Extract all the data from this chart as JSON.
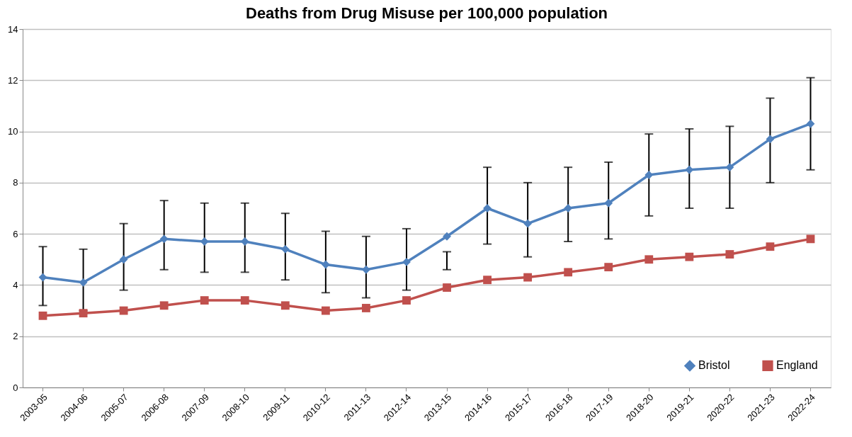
{
  "chart_data": {
    "type": "line",
    "title": "Deaths from Drug Misuse per 100,000 population",
    "categories": [
      "2003-05",
      "2004-06",
      "2005-07",
      "2006-08",
      "2007-09",
      "2008-10",
      "2009-11",
      "2010-12",
      "2011-13",
      "2012-14",
      "2013-15",
      "2014-16",
      "2015-17",
      "2016-18",
      "2017-19",
      "2018-20",
      "2019-21",
      "2020-22",
      "2021-23",
      "2022-24"
    ],
    "series": [
      {
        "name": "Bristol",
        "color": "#4f81bd",
        "marker": "diamond",
        "values": [
          4.3,
          4.1,
          5.0,
          5.8,
          5.7,
          5.7,
          5.4,
          4.8,
          4.6,
          4.9,
          5.9,
          7.0,
          6.4,
          7.0,
          7.2,
          8.3,
          8.5,
          8.6,
          9.7,
          10.3
        ],
        "errors": [
          [
            3.2,
            5.5
          ],
          [
            3.0,
            5.4
          ],
          [
            3.8,
            6.4
          ],
          [
            4.6,
            7.3
          ],
          [
            4.5,
            7.2
          ],
          [
            4.5,
            7.2
          ],
          [
            4.2,
            6.8
          ],
          [
            3.7,
            6.1
          ],
          [
            3.5,
            5.9
          ],
          [
            3.8,
            6.2
          ],
          [
            4.6,
            5.3
          ],
          [
            5.6,
            8.6
          ],
          [
            5.1,
            8.0
          ],
          [
            5.7,
            8.6
          ],
          [
            5.8,
            8.8
          ],
          [
            6.7,
            9.9
          ],
          [
            7.0,
            10.1
          ],
          [
            7.0,
            10.2
          ],
          [
            8.0,
            11.3
          ],
          [
            8.5,
            12.1
          ]
        ]
      },
      {
        "name": "England",
        "color": "#c0504d",
        "marker": "square",
        "values": [
          2.8,
          2.9,
          3.0,
          3.2,
          3.4,
          3.4,
          3.2,
          3.0,
          3.1,
          3.4,
          3.9,
          4.2,
          4.3,
          4.5,
          4.7,
          5.0,
          5.1,
          5.2,
          5.5,
          5.8
        ]
      }
    ],
    "ylim": [
      0,
      14
    ],
    "yticks": [
      0,
      2,
      4,
      6,
      8,
      10,
      12,
      14
    ],
    "grid": "y",
    "legend": "bottom right"
  }
}
